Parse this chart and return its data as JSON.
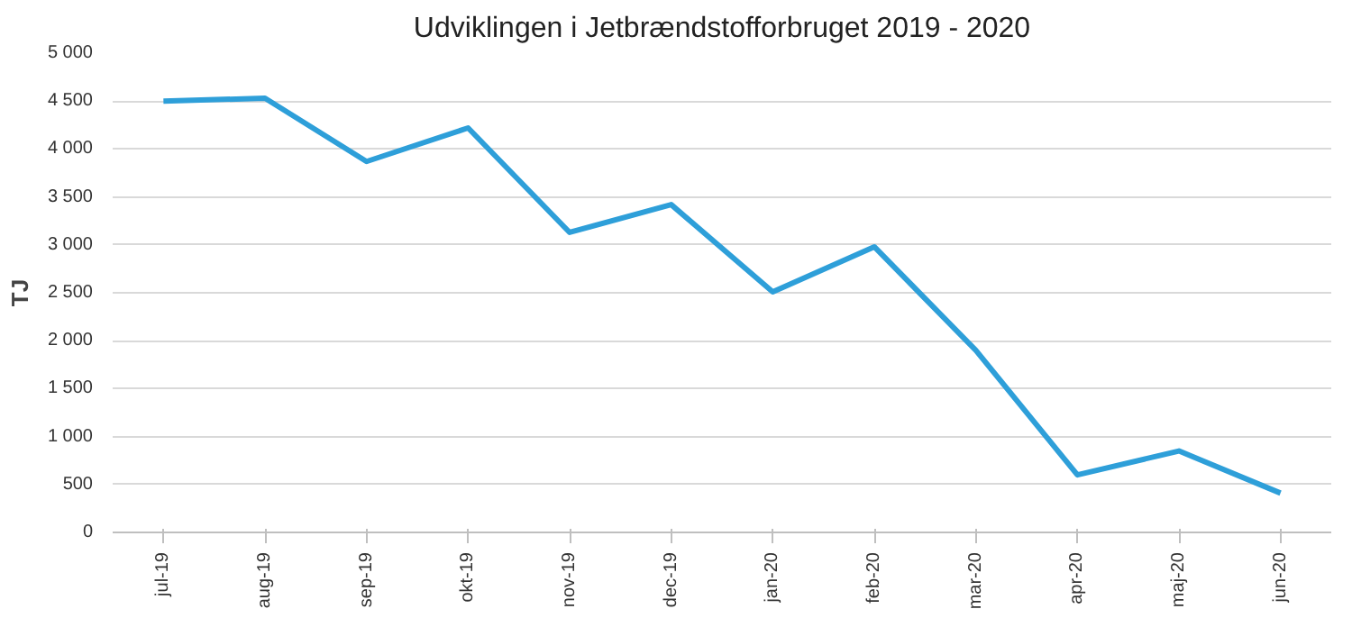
{
  "chart_data": {
    "type": "line",
    "title": "Udviklingen i Jetbrændstofforbruget 2019 - 2020",
    "ylabel": "TJ",
    "categories": [
      "jul-19",
      "aug-19",
      "sep-19",
      "okt-19",
      "nov-19",
      "dec-19",
      "jan-20",
      "feb-20",
      "mar-20",
      "apr-20",
      "maj-20",
      "jun-20"
    ],
    "series": [
      {
        "color": "#2e9fd9",
        "values": [
          4500,
          4530,
          3870,
          4220,
          3130,
          3420,
          2510,
          2980,
          1900,
          600,
          850,
          410
        ]
      }
    ],
    "ylim": [
      0,
      5000
    ],
    "yticks": [
      {
        "value": 0,
        "label": "0"
      },
      {
        "value": 500,
        "label": "500"
      },
      {
        "value": 1000,
        "label": "1 000"
      },
      {
        "value": 1500,
        "label": "1 500"
      },
      {
        "value": 2000,
        "label": "2 000"
      },
      {
        "value": 2500,
        "label": "2 500"
      },
      {
        "value": 3000,
        "label": "3 000"
      },
      {
        "value": 3500,
        "label": "3 500"
      },
      {
        "value": 4000,
        "label": "4 000"
      },
      {
        "value": 4500,
        "label": "4 500"
      },
      {
        "value": 5000,
        "label": "5 000"
      }
    ],
    "grid": "y",
    "marker": "none",
    "line_style": "solid"
  }
}
